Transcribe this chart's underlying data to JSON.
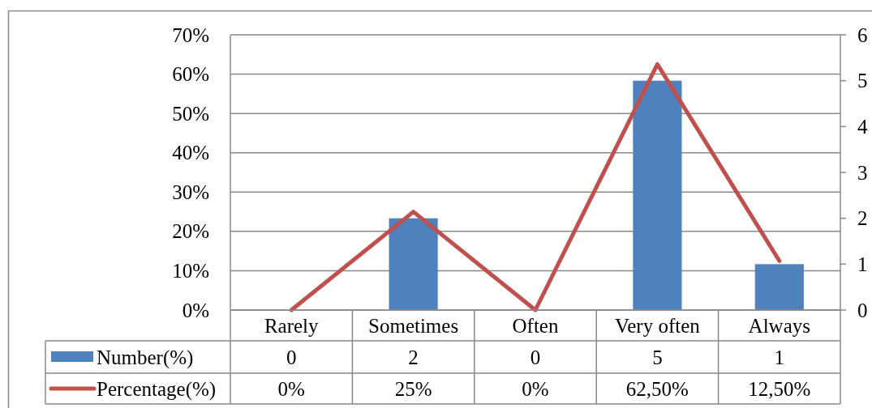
{
  "chart_data": {
    "type": "bar",
    "categories": [
      "Rarely",
      "Sometimes",
      "Often",
      "Very often",
      "Always"
    ],
    "series": [
      {
        "name": "Number(%)",
        "axis": "y2",
        "color": "#4f81bd",
        "values": [
          0,
          2,
          0,
          5,
          1
        ],
        "value_labels": [
          "0",
          "2",
          "0",
          "5",
          "1"
        ]
      },
      {
        "name": "Percentage(%)",
        "type": "line",
        "color": "#c0504d",
        "values": [
          0,
          25,
          0,
          62.5,
          12.5
        ],
        "value_labels": [
          "0%",
          "25%",
          "0%",
          "62,50%",
          "12,50%"
        ]
      }
    ],
    "ylim": [
      0,
      70
    ],
    "yticks": [
      {
        "value": 0,
        "label": "0%"
      },
      {
        "value": 10,
        "label": "10%"
      },
      {
        "value": 20,
        "label": "20%"
      },
      {
        "value": 30,
        "label": "30%"
      },
      {
        "value": 40,
        "label": "40%"
      },
      {
        "value": 50,
        "label": "50%"
      },
      {
        "value": 60,
        "label": "60%"
      },
      {
        "value": 70,
        "label": "70%"
      }
    ],
    "y2lim": [
      0,
      6
    ],
    "y2ticks": [
      0,
      1,
      2,
      3,
      4,
      5,
      6
    ],
    "grid": "y",
    "legend": "bottom"
  }
}
